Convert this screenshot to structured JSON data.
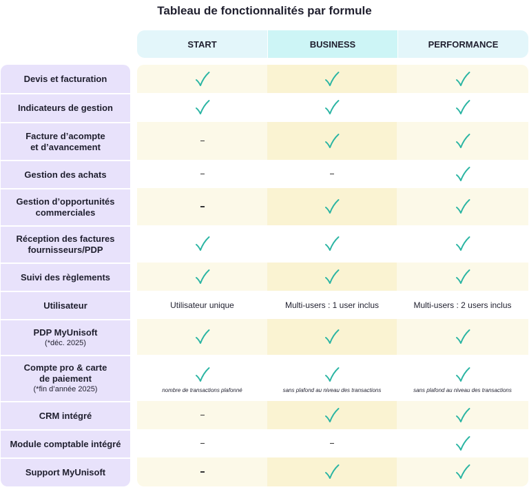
{
  "title": "Tableau de fonctionnalités par formule",
  "plans": [
    "START",
    "BUSINESS",
    "PERFORMANCE"
  ],
  "features": [
    {
      "label": "Devis et facturation",
      "sub": "",
      "cells": [
        {
          "type": "check"
        },
        {
          "type": "check"
        },
        {
          "type": "check"
        }
      ]
    },
    {
      "label": "Indicateurs de gestion",
      "sub": "",
      "cells": [
        {
          "type": "check"
        },
        {
          "type": "check"
        },
        {
          "type": "check"
        }
      ]
    },
    {
      "label": "Facture d’acompte\net d’avancement",
      "sub": "",
      "cells": [
        {
          "type": "dash"
        },
        {
          "type": "check"
        },
        {
          "type": "check"
        }
      ]
    },
    {
      "label": "Gestion des achats",
      "sub": "",
      "cells": [
        {
          "type": "dash"
        },
        {
          "type": "dash"
        },
        {
          "type": "check"
        }
      ]
    },
    {
      "label": "Gestion d’opportunités\ncommerciales",
      "sub": "",
      "cells": [
        {
          "type": "dash"
        },
        {
          "type": "check"
        },
        {
          "type": "check"
        }
      ]
    },
    {
      "label": "Réception des factures\nfournisseurs/PDP",
      "sub": "",
      "cells": [
        {
          "type": "check"
        },
        {
          "type": "check"
        },
        {
          "type": "check"
        }
      ]
    },
    {
      "label": "Suivi des règlements",
      "sub": "",
      "cells": [
        {
          "type": "check"
        },
        {
          "type": "check"
        },
        {
          "type": "check"
        }
      ]
    },
    {
      "label": "Utilisateur",
      "sub": "",
      "cells": [
        {
          "type": "text",
          "text": "Utilisateur unique"
        },
        {
          "type": "text",
          "text": "Multi-users : 1 user inclus"
        },
        {
          "type": "text",
          "text": "Multi-users : 2 users inclus"
        }
      ]
    },
    {
      "label": "PDP MyUnisoft",
      "sub": "(*déc. 2025)",
      "cells": [
        {
          "type": "check"
        },
        {
          "type": "check"
        },
        {
          "type": "check"
        }
      ]
    },
    {
      "label": "Compte pro & carte\nde paiement",
      "sub": "(*fin d’année 2025)",
      "cells": [
        {
          "type": "check",
          "note": "nombre de transactions plafonné"
        },
        {
          "type": "check",
          "note": "sans plafond au niveau des transactions"
        },
        {
          "type": "check",
          "note": "sans plafond au niveau des transactions"
        }
      ]
    },
    {
      "label": "CRM intégré",
      "sub": "",
      "cells": [
        {
          "type": "dash"
        },
        {
          "type": "check"
        },
        {
          "type": "check"
        }
      ]
    },
    {
      "label": "Module comptable intégré",
      "sub": "",
      "cells": [
        {
          "type": "dash"
        },
        {
          "type": "dash"
        },
        {
          "type": "check"
        }
      ]
    },
    {
      "label": "Support MyUnisoft",
      "sub": "",
      "cells": [
        {
          "type": "dash"
        },
        {
          "type": "check"
        },
        {
          "type": "check"
        }
      ]
    }
  ],
  "colors": {
    "feature_bg": "#e8e2fb",
    "plan_bg": "#e3f6fa",
    "plan_highlight_bg": "#cdf5f6",
    "row_shade": "#fcf9e8",
    "row_shade_highlight": "#faf3d2",
    "check": "#2bb5a3"
  }
}
